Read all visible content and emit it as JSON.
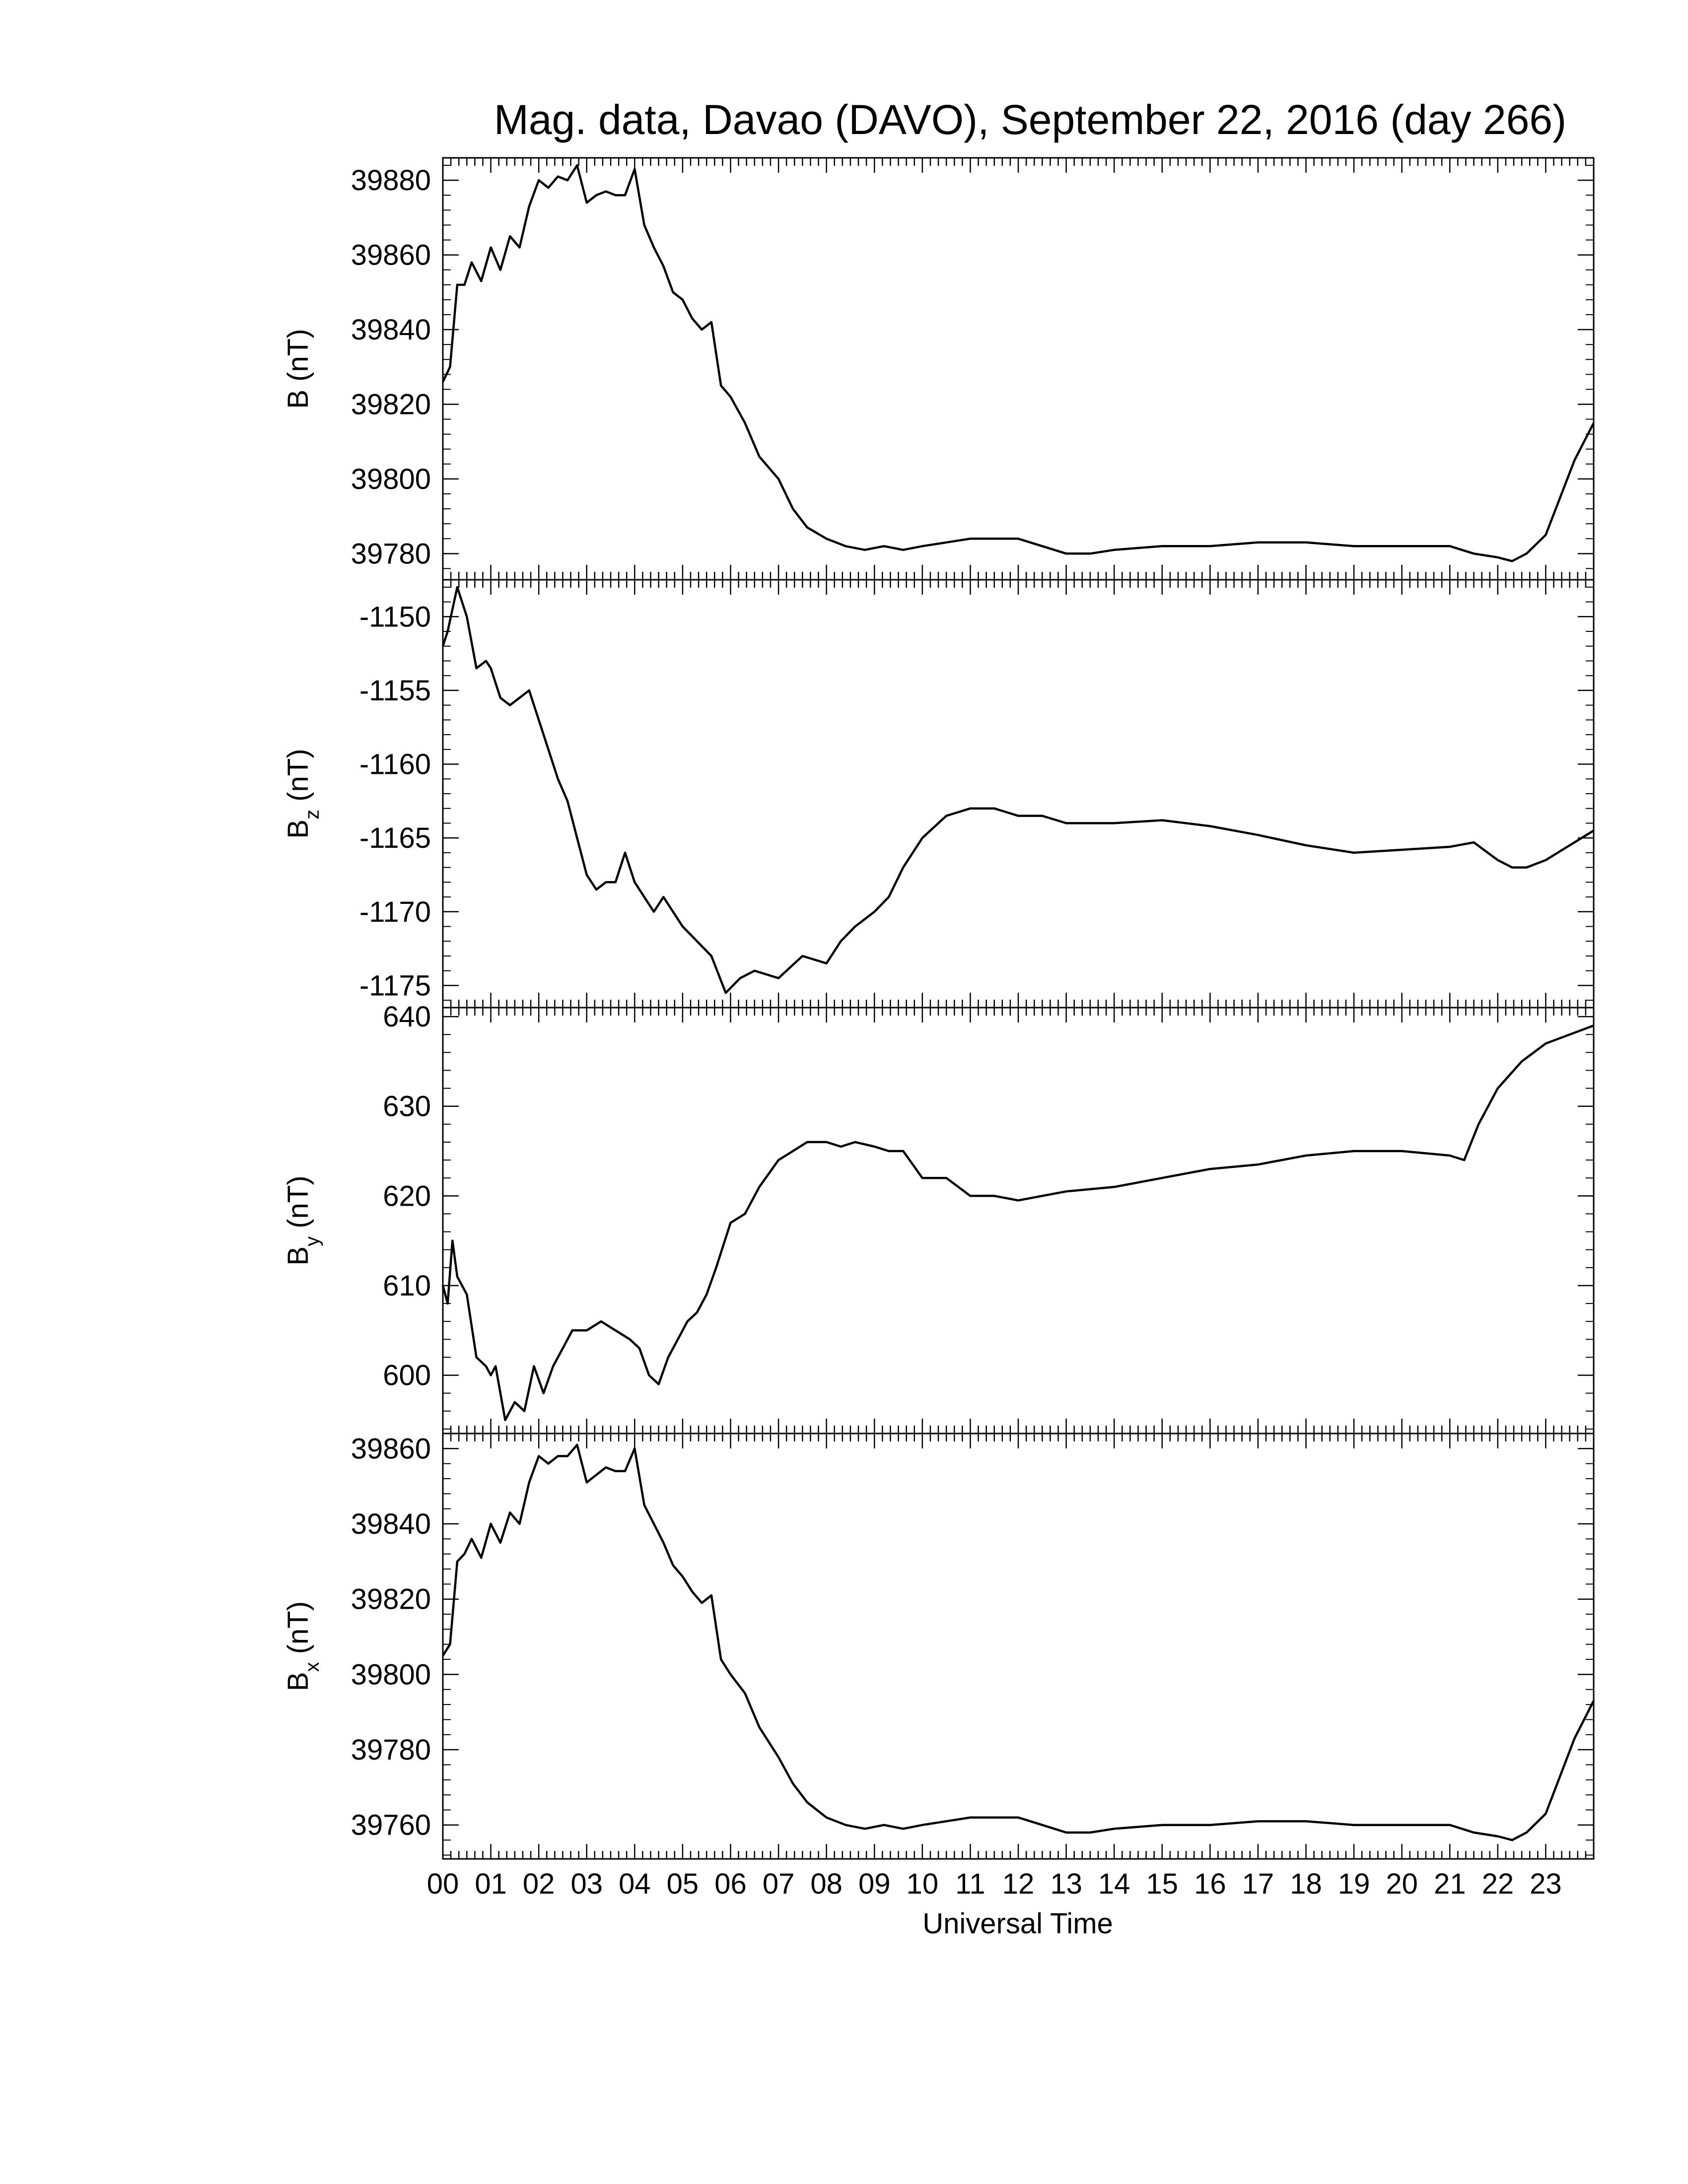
{
  "chart_data": {
    "type": "line",
    "title": "Mag. data, Davao (DAVO), September 22, 2016 (day 266)",
    "xlabel": "Universal Time",
    "xlim": [
      0,
      24
    ],
    "xticks": [
      "00",
      "01",
      "02",
      "03",
      "04",
      "05",
      "06",
      "07",
      "08",
      "09",
      "10",
      "11",
      "12",
      "13",
      "14",
      "15",
      "16",
      "17",
      "18",
      "19",
      "20",
      "21",
      "22",
      "23"
    ],
    "panels": [
      {
        "id": "B",
        "ylabel": "B (nT)",
        "ylabel_main": "B",
        "ylabel_sub": "",
        "ylabel_unit": "(nT)",
        "ylim": [
          39773,
          39886
        ],
        "yticks": [
          39780,
          39800,
          39820,
          39840,
          39860,
          39880
        ],
        "x": [
          0,
          0.15,
          0.3,
          0.45,
          0.6,
          0.8,
          1,
          1.2,
          1.4,
          1.6,
          1.8,
          2,
          2.2,
          2.4,
          2.6,
          2.8,
          3,
          3.2,
          3.4,
          3.6,
          3.8,
          4,
          4.2,
          4.4,
          4.6,
          4.8,
          5,
          5.2,
          5.4,
          5.6,
          5.8,
          6,
          6.3,
          6.6,
          7,
          7.3,
          7.6,
          8,
          8.4,
          8.8,
          9.2,
          9.6,
          10,
          10.5,
          11,
          11.5,
          12,
          12.5,
          13,
          13.5,
          14,
          15,
          16,
          17,
          18,
          19,
          20,
          21,
          21.5,
          22,
          22.3,
          22.6,
          23,
          23.3,
          23.6,
          24
        ],
        "y": [
          39826,
          39830,
          39852,
          39852,
          39858,
          39853,
          39862,
          39856,
          39865,
          39862,
          39873,
          39880,
          39878,
          39881,
          39880,
          39884,
          39874,
          39876,
          39877,
          39876,
          39876,
          39883,
          39868,
          39862,
          39857,
          39850,
          39848,
          39843,
          39840,
          39842,
          39825,
          39822,
          39815,
          39806,
          39800,
          39792,
          39787,
          39784,
          39782,
          39781,
          39782,
          39781,
          39782,
          39783,
          39784,
          39784,
          39784,
          39782,
          39780,
          39780,
          39781,
          39782,
          39782,
          39783,
          39783,
          39782,
          39782,
          39782,
          39780,
          39779,
          39778,
          39780,
          39785,
          39795,
          39805,
          39815
        ]
      },
      {
        "id": "Bz",
        "ylabel": "Bz (nT)",
        "ylabel_main": "B",
        "ylabel_sub": "z",
        "ylabel_unit": "(nT)",
        "ylim": [
          -1176.5,
          -1147.5
        ],
        "yticks": [
          -1150,
          -1155,
          -1160,
          -1165,
          -1170,
          -1175
        ],
        "x": [
          0,
          0.1,
          0.3,
          0.5,
          0.7,
          0.9,
          1,
          1.2,
          1.4,
          1.6,
          1.8,
          2,
          2.2,
          2.4,
          2.6,
          2.8,
          3,
          3.2,
          3.4,
          3.6,
          3.8,
          4,
          4.2,
          4.4,
          4.6,
          4.8,
          5,
          5.3,
          5.6,
          5.9,
          6.2,
          6.5,
          7,
          7.5,
          8,
          8.3,
          8.6,
          9,
          9.3,
          9.6,
          10,
          10.5,
          11,
          11.5,
          12,
          12.5,
          13,
          14,
          15,
          16,
          17,
          18,
          19,
          20,
          21,
          21.5,
          22,
          22.3,
          22.6,
          23,
          23.5,
          24
        ],
        "y": [
          -1152,
          -1151,
          -1148,
          -1150,
          -1153.5,
          -1153,
          -1153.5,
          -1155.5,
          -1156,
          -1155.5,
          -1155,
          -1157,
          -1159,
          -1161,
          -1162.5,
          -1165,
          -1167.5,
          -1168.5,
          -1168,
          -1168,
          -1166,
          -1168,
          -1169,
          -1170,
          -1169,
          -1170,
          -1171,
          -1172,
          -1173,
          -1175.5,
          -1174.5,
          -1174,
          -1174.5,
          -1173,
          -1173.5,
          -1172,
          -1171,
          -1170,
          -1169,
          -1167,
          -1165,
          -1163.5,
          -1163,
          -1163,
          -1163.5,
          -1163.5,
          -1164,
          -1164,
          -1163.8,
          -1164.2,
          -1164.8,
          -1165.5,
          -1166,
          -1165.8,
          -1165.6,
          -1165.3,
          -1166.5,
          -1167,
          -1167,
          -1166.5,
          -1165.5,
          -1164.5
        ]
      },
      {
        "id": "By",
        "ylabel": "By (nT)",
        "ylabel_main": "B",
        "ylabel_sub": "y",
        "ylabel_unit": "(nT)",
        "ylim": [
          593.5,
          641
        ],
        "yticks": [
          600,
          610,
          620,
          630,
          640
        ],
        "x": [
          0,
          0.1,
          0.2,
          0.3,
          0.5,
          0.7,
          0.9,
          1,
          1.1,
          1.3,
          1.5,
          1.7,
          1.9,
          2.1,
          2.3,
          2.5,
          2.7,
          3,
          3.3,
          3.6,
          3.9,
          4.1,
          4.3,
          4.5,
          4.7,
          4.9,
          5.1,
          5.3,
          5.5,
          5.7,
          6,
          6.3,
          6.6,
          7,
          7.3,
          7.6,
          8,
          8.3,
          8.6,
          9,
          9.3,
          9.6,
          10,
          10.5,
          11,
          11.5,
          12,
          12.5,
          13,
          14,
          15,
          16,
          17,
          18,
          19,
          20,
          21,
          21.3,
          21.6,
          22,
          22.5,
          23,
          23.5,
          24
        ],
        "y": [
          610,
          608,
          615,
          611,
          609,
          602,
          601,
          600,
          601,
          595,
          597,
          596,
          601,
          598,
          601,
          603,
          605,
          605,
          606,
          605,
          604,
          603,
          600,
          599,
          602,
          604,
          606,
          607,
          609,
          612,
          617,
          618,
          621,
          624,
          625,
          626,
          626,
          625.5,
          626,
          625.5,
          625,
          625,
          622,
          622,
          620,
          620,
          619.5,
          620,
          620.5,
          621,
          622,
          623,
          623.5,
          624.5,
          625,
          625,
          624.5,
          624,
          628,
          632,
          635,
          637,
          638,
          639
        ]
      },
      {
        "id": "Bx",
        "ylabel": "Bx (nT)",
        "ylabel_main": "B",
        "ylabel_sub": "x",
        "ylabel_unit": "(nT)",
        "ylim": [
          39751,
          39864
        ],
        "yticks": [
          39760,
          39780,
          39800,
          39820,
          39840,
          39860
        ],
        "x": [
          0,
          0.15,
          0.3,
          0.45,
          0.6,
          0.8,
          1,
          1.2,
          1.4,
          1.6,
          1.8,
          2,
          2.2,
          2.4,
          2.6,
          2.8,
          3,
          3.2,
          3.4,
          3.6,
          3.8,
          4,
          4.2,
          4.4,
          4.6,
          4.8,
          5,
          5.2,
          5.4,
          5.6,
          5.8,
          6,
          6.3,
          6.6,
          7,
          7.3,
          7.6,
          8,
          8.4,
          8.8,
          9.2,
          9.6,
          10,
          10.5,
          11,
          11.5,
          12,
          12.5,
          13,
          13.5,
          14,
          15,
          16,
          17,
          18,
          19,
          20,
          21,
          21.5,
          22,
          22.3,
          22.6,
          23,
          23.3,
          23.6,
          24
        ],
        "y": [
          39805,
          39808,
          39830,
          39832,
          39836,
          39831,
          39840,
          39835,
          39843,
          39840,
          39851,
          39858,
          39856,
          39858,
          39858,
          39861,
          39851,
          39853,
          39855,
          39854,
          39854,
          39860,
          39845,
          39840,
          39835,
          39829,
          39826,
          39822,
          39819,
          39821,
          39804,
          39800,
          39795,
          39786,
          39778,
          39771,
          39766,
          39762,
          39760,
          39759,
          39760,
          39759,
          39760,
          39761,
          39762,
          39762,
          39762,
          39760,
          39758,
          39758,
          39759,
          39760,
          39760,
          39761,
          39761,
          39760,
          39760,
          39760,
          39758,
          39757,
          39756,
          39758,
          39763,
          39773,
          39783,
          39793
        ]
      }
    ]
  }
}
